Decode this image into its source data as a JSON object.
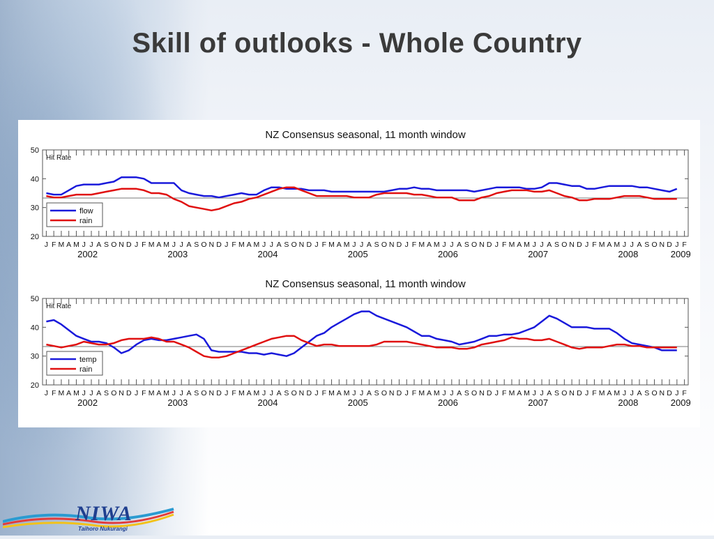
{
  "slide": {
    "title": "Skill of outlooks - Whole Country"
  },
  "logo": {
    "name": "NIWA",
    "tagline": "Taihoro Nukurangi"
  },
  "chart_data": [
    {
      "type": "line",
      "title": "NZ Consensus seasonal, 11 month window",
      "ylabel": "Hit Rate",
      "ylim": [
        20,
        50
      ],
      "yticks": [
        20,
        30,
        40,
        50
      ],
      "reference_line": 33.3,
      "month_labels": [
        "J",
        "F",
        "M",
        "A",
        "M",
        "J",
        "J",
        "A",
        "S",
        "O",
        "N",
        "D",
        "J",
        "F",
        "M",
        "A",
        "M",
        "J",
        "J",
        "A",
        "S",
        "O",
        "N",
        "D",
        "J",
        "F",
        "M",
        "A",
        "M",
        "J",
        "J",
        "A",
        "S",
        "O",
        "N",
        "D",
        "J",
        "F",
        "M",
        "A",
        "M",
        "J",
        "J",
        "A",
        "S",
        "O",
        "N",
        "D",
        "J",
        "F",
        "M",
        "A",
        "M",
        "J",
        "J",
        "A",
        "S",
        "O",
        "N",
        "D",
        "J",
        "F",
        "M",
        "A",
        "M",
        "J",
        "J",
        "A",
        "S",
        "O",
        "N",
        "D",
        "J",
        "F",
        "M",
        "A",
        "M",
        "J",
        "J",
        "A",
        "S",
        "O",
        "N",
        "D",
        "J",
        "F"
      ],
      "year_labels": [
        {
          "label": "2002",
          "month_index": 5.5
        },
        {
          "label": "2003",
          "month_index": 17.5
        },
        {
          "label": "2004",
          "month_index": 29.5
        },
        {
          "label": "2005",
          "month_index": 41.5
        },
        {
          "label": "2006",
          "month_index": 53.5
        },
        {
          "label": "2007",
          "month_index": 65.5
        },
        {
          "label": "2008",
          "month_index": 77.5
        },
        {
          "label": "2009",
          "month_index": 84.5
        }
      ],
      "legend_placement": "bottom-left",
      "series": [
        {
          "name": "flow",
          "color": "#1a1adb",
          "values": [
            35,
            34.5,
            34.5,
            36,
            37.5,
            38,
            38,
            38,
            38.5,
            39,
            40.5,
            40.5,
            40.5,
            40,
            38.5,
            38.5,
            38.5,
            38.5,
            36,
            35,
            34.5,
            34,
            34,
            33.5,
            34,
            34.5,
            35,
            34.5,
            34.5,
            36,
            37,
            37,
            36.5,
            36.5,
            36.5,
            36,
            36,
            36,
            35.5,
            35.5,
            35.5,
            35.5,
            35.5,
            35.5,
            35.5,
            35.5,
            36,
            36.5,
            36.5,
            37,
            36.5,
            36.5,
            36,
            36,
            36,
            36,
            36,
            35.5,
            36,
            36.5,
            37,
            37,
            37,
            37,
            36.5,
            36.5,
            37,
            38.5,
            38.5,
            38,
            37.5,
            37.5,
            36.5,
            36.5,
            37,
            37.5,
            37.5,
            37.5,
            37.5,
            37,
            37,
            36.5,
            36,
            35.5,
            36.5
          ]
        },
        {
          "name": "rain",
          "color": "#e01010",
          "values": [
            34,
            33.5,
            33.5,
            34,
            34.5,
            34.5,
            34.5,
            35,
            35.5,
            36,
            36.5,
            36.5,
            36.5,
            36,
            35,
            35,
            34.5,
            33,
            32,
            30.5,
            30,
            29.5,
            29,
            29.5,
            30.5,
            31.5,
            32,
            33,
            33.5,
            34.5,
            35.5,
            36.5,
            37,
            37,
            36,
            35,
            34,
            34,
            34,
            34,
            34,
            33.5,
            33.5,
            33.5,
            34.5,
            35,
            35,
            35,
            35,
            34.5,
            34.5,
            34,
            33.5,
            33.5,
            33.5,
            32.5,
            32.5,
            32.5,
            33.5,
            34,
            35,
            35.5,
            36,
            36,
            36,
            35.5,
            35.5,
            36,
            35,
            34,
            33.5,
            32.5,
            32.5,
            33,
            33,
            33,
            33.5,
            34,
            34,
            34,
            33.5,
            33,
            33,
            33,
            33
          ]
        }
      ]
    },
    {
      "type": "line",
      "title": "NZ Consensus seasonal, 11 month window",
      "ylabel": "Hit Rate",
      "ylim": [
        20,
        50
      ],
      "yticks": [
        20,
        30,
        40,
        50
      ],
      "reference_line": 33.3,
      "month_labels": [
        "J",
        "F",
        "M",
        "A",
        "M",
        "J",
        "J",
        "A",
        "S",
        "O",
        "N",
        "D",
        "J",
        "F",
        "M",
        "A",
        "M",
        "J",
        "J",
        "A",
        "S",
        "O",
        "N",
        "D",
        "J",
        "F",
        "M",
        "A",
        "M",
        "J",
        "J",
        "A",
        "S",
        "O",
        "N",
        "D",
        "J",
        "F",
        "M",
        "A",
        "M",
        "J",
        "J",
        "A",
        "S",
        "O",
        "N",
        "D",
        "J",
        "F",
        "M",
        "A",
        "M",
        "J",
        "J",
        "A",
        "S",
        "O",
        "N",
        "D",
        "J",
        "F",
        "M",
        "A",
        "M",
        "J",
        "J",
        "A",
        "S",
        "O",
        "N",
        "D",
        "J",
        "F",
        "M",
        "A",
        "M",
        "J",
        "J",
        "A",
        "S",
        "O",
        "N",
        "D",
        "J",
        "F"
      ],
      "year_labels": [
        {
          "label": "2002",
          "month_index": 5.5
        },
        {
          "label": "2003",
          "month_index": 17.5
        },
        {
          "label": "2004",
          "month_index": 29.5
        },
        {
          "label": "2005",
          "month_index": 41.5
        },
        {
          "label": "2006",
          "month_index": 53.5
        },
        {
          "label": "2007",
          "month_index": 65.5
        },
        {
          "label": "2008",
          "month_index": 77.5
        },
        {
          "label": "2009",
          "month_index": 84.5
        }
      ],
      "legend_placement": "bottom-left",
      "series": [
        {
          "name": "temp",
          "color": "#1a1adb",
          "values": [
            42,
            42.5,
            41,
            39,
            37,
            36,
            35,
            35,
            34.5,
            33,
            31,
            32,
            34,
            35.5,
            36,
            35.5,
            35.5,
            36,
            36.5,
            37,
            37.5,
            36,
            32,
            31.5,
            31.5,
            31.5,
            31.5,
            31,
            31,
            30.5,
            31,
            30.5,
            30,
            31,
            33,
            35,
            37,
            38,
            40,
            41.5,
            43,
            44.5,
            45.5,
            45.5,
            44,
            43,
            42,
            41,
            40,
            38.5,
            37,
            37,
            36,
            35.5,
            35,
            34,
            34.5,
            35,
            36,
            37,
            37,
            37.5,
            37.5,
            38,
            39,
            40,
            42,
            44,
            43,
            41.5,
            40,
            40,
            40,
            39.5,
            39.5,
            39.5,
            38,
            36,
            34.5,
            34,
            33.5,
            33,
            32,
            32,
            32
          ]
        },
        {
          "name": "rain",
          "color": "#e01010",
          "values": [
            34,
            33.5,
            33,
            33.5,
            34,
            35,
            34.5,
            34,
            34,
            34.5,
            35.5,
            36,
            36,
            36,
            36.5,
            36,
            35,
            35,
            34,
            33,
            31.5,
            30,
            29.5,
            29.5,
            30,
            31,
            32,
            33,
            34,
            35,
            36,
            36.5,
            37,
            37,
            35.5,
            34.5,
            33.5,
            34,
            34,
            33.5,
            33.5,
            33.5,
            33.5,
            33.5,
            34,
            35,
            35,
            35,
            35,
            34.5,
            34,
            33.5,
            33,
            33,
            33,
            32.5,
            32.5,
            33,
            34,
            34.5,
            35,
            35.5,
            36.5,
            36,
            36,
            35.5,
            35.5,
            36,
            35,
            34,
            33,
            32.5,
            33,
            33,
            33,
            33.5,
            34,
            34,
            33.5,
            33.5,
            33,
            33,
            33,
            33,
            33
          ]
        }
      ]
    }
  ]
}
